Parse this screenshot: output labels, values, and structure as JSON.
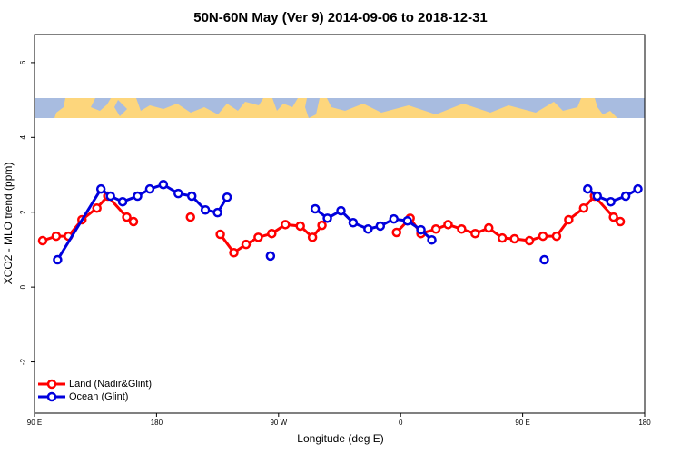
{
  "chart_data": {
    "type": "line",
    "title": "50N-60N May (Ver 9)   2014-09-06 to 2018-12-31",
    "x_label": "Longitude (deg E)",
    "y_label": "XCO2 - MLO trend (ppm)",
    "xlim": [
      90,
      540
    ],
    "ylim": [
      -3.37,
      6.75
    ],
    "xticks": [
      {
        "value": 90,
        "label": "90 E"
      },
      180,
      {
        "value": 270,
        "label": "90 W"
      },
      {
        "value": 360,
        "label": "0"
      },
      {
        "value": 450,
        "label": "90 E"
      },
      {
        "value": 540,
        "label": "180"
      }
    ],
    "yticks": [
      -2,
      0,
      2,
      4,
      6
    ],
    "legend": "bottom-left",
    "series": [
      {
        "name": "Land (Nadir&Glint)",
        "color": "#ff0000",
        "x": [
          96,
          106,
          115,
          125,
          136,
          144,
          158,
          163,
          null,
          205,
          null,
          227,
          237,
          246,
          255,
          265,
          275,
          286,
          295,
          302,
          null,
          357,
          367,
          375,
          386,
          395,
          405,
          415,
          425,
          435,
          444,
          455,
          465,
          475,
          484,
          495,
          503,
          517,
          522
        ],
        "values": [
          1.24,
          1.36,
          1.36,
          1.8,
          2.11,
          2.43,
          1.87,
          1.75,
          null,
          1.87,
          null,
          1.41,
          0.92,
          1.14,
          1.33,
          1.43,
          1.67,
          1.63,
          1.33,
          1.65,
          null,
          1.46,
          1.84,
          1.43,
          1.55,
          1.67,
          1.55,
          1.43,
          1.58,
          1.31,
          1.29,
          1.24,
          1.36,
          1.36,
          1.8,
          2.11,
          2.43,
          1.87,
          1.75
        ]
      },
      {
        "name": "Ocean (Glint)",
        "color": "#0000dd",
        "x": [
          107,
          139,
          146,
          155,
          166,
          175,
          185,
          196,
          206,
          216,
          225,
          232,
          null,
          264,
          null,
          297,
          306,
          316,
          325,
          336,
          345,
          355,
          365,
          375,
          383,
          null,
          466,
          null,
          498,
          505,
          515,
          526,
          535
        ],
        "values": [
          0.73,
          2.62,
          2.43,
          2.28,
          2.43,
          2.62,
          2.74,
          2.5,
          2.43,
          2.06,
          1.99,
          2.4,
          null,
          0.83,
          null,
          2.09,
          1.84,
          2.04,
          1.72,
          1.55,
          1.63,
          1.82,
          1.77,
          1.53,
          1.26,
          null,
          0.73,
          null,
          2.62,
          2.43,
          2.28,
          2.43,
          2.62
        ]
      }
    ]
  }
}
